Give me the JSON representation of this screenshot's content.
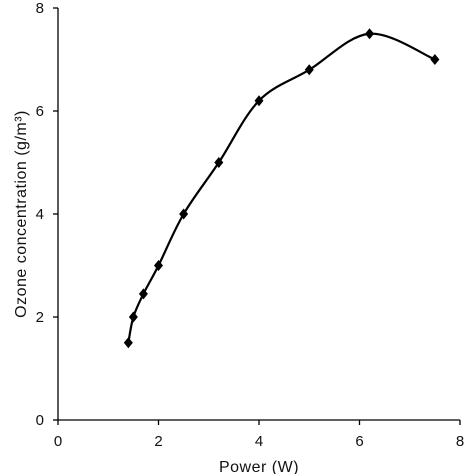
{
  "chart_data": {
    "type": "line",
    "title": "",
    "xlabel": "Power (W)",
    "ylabel": "Ozone concentration (g/m³)",
    "xlim": [
      0,
      8
    ],
    "ylim": [
      0,
      8
    ],
    "x_ticks": [
      "0",
      "2",
      "4",
      "6",
      "8"
    ],
    "y_ticks": [
      "0",
      "2",
      "4",
      "6",
      "8"
    ],
    "grid": false,
    "legend": "none",
    "marker": "diamond",
    "line_color": "#000000",
    "series": [
      {
        "x": [
          1.4,
          1.5,
          1.7,
          2.0,
          2.5,
          3.2,
          4.0,
          5.0,
          6.2,
          7.5
        ],
        "y": [
          1.5,
          2.0,
          2.45,
          3.0,
          4.0,
          5.0,
          6.2,
          6.8,
          7.5,
          7.0
        ]
      }
    ]
  }
}
